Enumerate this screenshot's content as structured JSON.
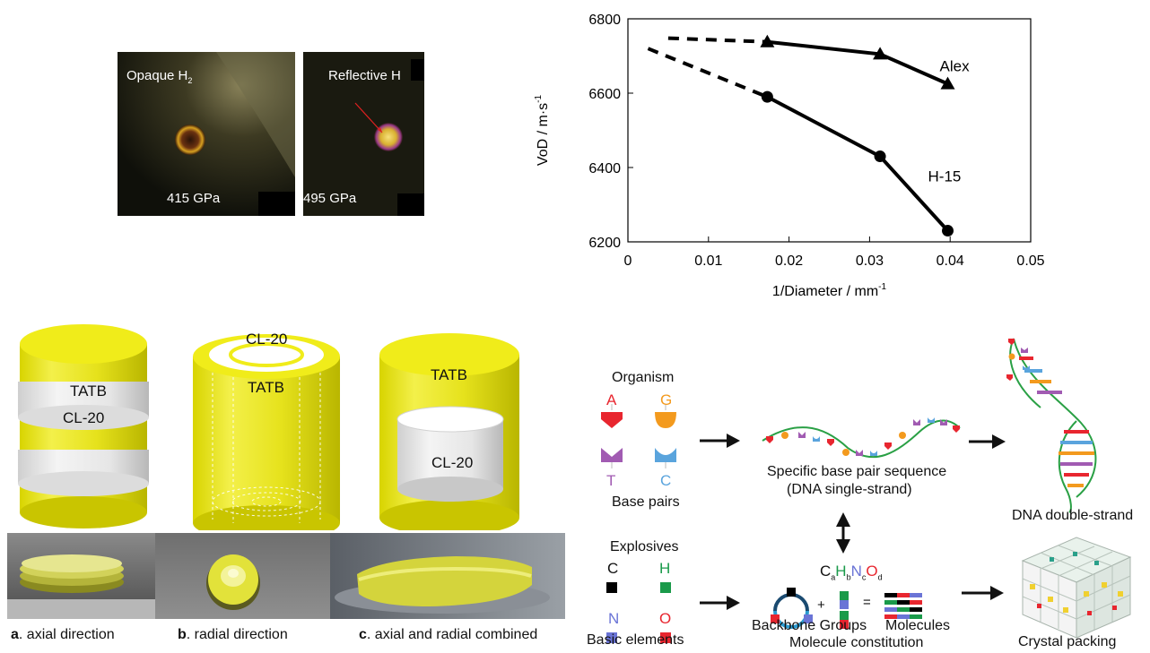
{
  "photos": {
    "left_label_main": "Opaque H",
    "left_label_sub": "2",
    "left_pressure": "415 GPa",
    "right_label": "Reflective H",
    "right_pressure": "495 GPa"
  },
  "chart_data": {
    "type": "line",
    "xlabel_main": "1/Diameter / mm",
    "xlabel_sup": "-1",
    "ylabel_main": "VoD / m·s",
    "ylabel_sup": "-1",
    "xlim": [
      0,
      0.05
    ],
    "ylim": [
      6200,
      6800
    ],
    "xticks": [
      "0",
      "0.01",
      "0.02",
      "0.03",
      "0.04",
      "0.05"
    ],
    "yticks": [
      "6200",
      "6400",
      "6600",
      "6800"
    ],
    "series": [
      {
        "name": "Alex",
        "marker": "triangle",
        "x": [
          0.0173,
          0.0313,
          0.0397
        ],
        "y": [
          6738,
          6705,
          6625
        ],
        "extrapolation": {
          "x": [
            0.005,
            0.0173
          ],
          "y": [
            6748,
            6738
          ]
        }
      },
      {
        "name": "H-15",
        "marker": "circle",
        "x": [
          0.0173,
          0.0313,
          0.0397
        ],
        "y": [
          6590,
          6430,
          6230
        ],
        "extrapolation": {
          "x": [
            0.0025,
            0.0173
          ],
          "y": [
            6720,
            6590
          ]
        }
      }
    ]
  },
  "cylinders": {
    "a_top": "TATB",
    "a_band": "CL-20",
    "b_top": "CL-20",
    "b_side": "TATB",
    "c_top": "TATB",
    "c_core": "CL-20"
  },
  "captions": {
    "a_letter": "a",
    "a_text": ". axial direction",
    "b_letter": "b",
    "b_text": ". radial direction",
    "c_letter": "c",
    "c_text": ". axial and radial combined"
  },
  "diagram": {
    "organism": "Organism",
    "bases": [
      "A",
      "G",
      "T",
      "C"
    ],
    "base_pairs": "Base pairs",
    "specific_1": "Specific base pair sequence",
    "specific_2": "(DNA single-strand)",
    "dna_double": "DNA double-strand",
    "explosives": "Explosives",
    "elements": [
      "C",
      "H",
      "N",
      "O"
    ],
    "basic_elements": "Basic elements",
    "formula": {
      "C": "C",
      "a": "a",
      "H": "H",
      "b": "b",
      "N": "N",
      "c": "c",
      "O": "O",
      "d": "d"
    },
    "plus": "+",
    "equals": "=",
    "backbone": "Backbone Groups",
    "molecules": "Molecules",
    "constitution": "Molecule constitution",
    "crystal": "Crystal packing",
    "colors": {
      "red": "#e8262f",
      "orange": "#f39a1e",
      "purple": "#a15bb2",
      "blue": "#5aa4dd",
      "green": "#1a9a4a",
      "navy": "#6a74d6"
    }
  }
}
